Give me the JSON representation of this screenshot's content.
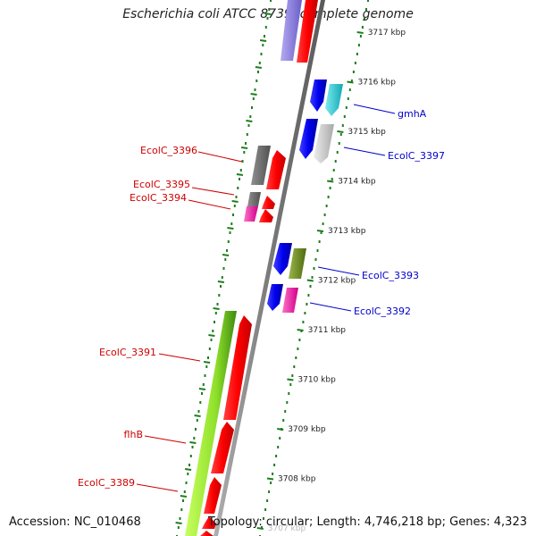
{
  "title": "Escherichia coli ATCC 8739, complete genome",
  "footer": {
    "accession": "Accession: NC_010468",
    "topology": "Topology: circular; Length: 4,746,218 bp; Genes: 4,323"
  },
  "ruler_labels": [
    "3717 kbp",
    "3716 kbp",
    "3715 kbp",
    "3714 kbp",
    "3713 kbp",
    "3712 kbp",
    "3711 kbp",
    "3710 kbp",
    "3709 kbp",
    "3708 kbp",
    "3707 kbp"
  ],
  "gene_labels_left": [
    "EcolC_3396",
    "EcolC_3395",
    "EcolC_3394",
    "EcolC_3391",
    "flhB",
    "EcolC_3389"
  ],
  "gene_labels_right": [
    "gmhA",
    "EcolC_3397",
    "EcolC_3393",
    "EcolC_3392"
  ],
  "colors": {
    "cds": "#ff0000",
    "gene_blue": "#0000ee",
    "cyan": "#1ec8d2",
    "light_gray": "#c8c8c8",
    "dark_gray": "#6e6e6e",
    "magenta": "#ff1aa3",
    "olive": "#6f8f1f",
    "lime": "#8fe02a",
    "lavender": "#8a7fd8",
    "backbone": "#808080",
    "tick_green": "#1e7e1e",
    "label_red": "#cc0000",
    "label_blue": "#0000cc"
  }
}
